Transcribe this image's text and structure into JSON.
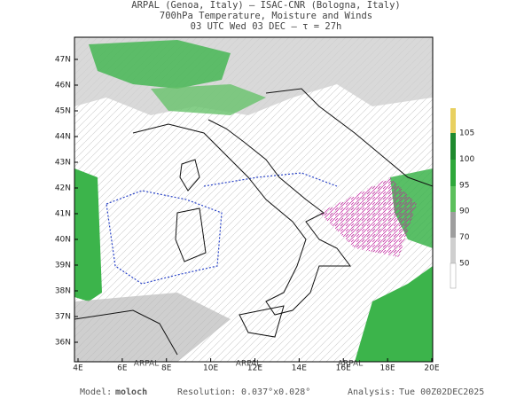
{
  "header": {
    "line1": "ARPAL (Genoa, Italy)  –  ISAC-CNR (Bologna, Italy)",
    "line2": "700hPa Temperature, Moisture and Winds",
    "line3": "03 UTC Wed 03 DEC  –  τ = 27h"
  },
  "map": {
    "lat_labels": [
      "47N",
      "46N",
      "45N",
      "44N",
      "43N",
      "42N",
      "41N",
      "40N",
      "39N",
      "38N",
      "37N",
      "36N"
    ],
    "lon_labels": [
      "4E",
      "6E",
      "8E",
      "10E",
      "12E",
      "14E",
      "16E",
      "18E",
      "20E"
    ],
    "watermarks": [
      "ARPAL",
      "ARPAL",
      "ARPAL"
    ]
  },
  "colorbar": {
    "labels": [
      "105",
      "100",
      "95",
      "90",
      "70",
      "50"
    ]
  },
  "footer": {
    "model_label": "Model:",
    "model": "moloch",
    "resolution_label": "Resolution:",
    "resolution": "0.037°x0.028°",
    "analysis_label": "Analysis:",
    "analysis": "Tue 00Z02DEC2025"
  }
}
